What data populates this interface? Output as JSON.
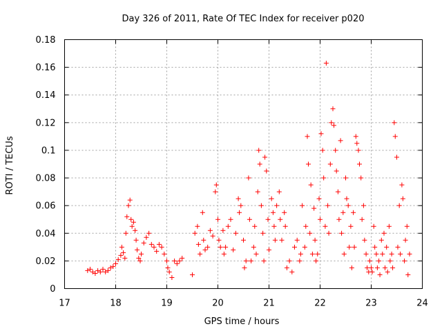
{
  "chart_data": {
    "type": "scatter",
    "title": "Day 326 of 2011, Rate Of TEC Index for receiver p020",
    "xlabel": "GPS time / hours",
    "ylabel": "ROTI / TECUs",
    "xlim": [
      17,
      24
    ],
    "ylim": [
      0,
      0.18
    ],
    "xticks": [
      17,
      18,
      19,
      20,
      21,
      22,
      23,
      24
    ],
    "yticks": [
      0,
      0.02,
      0.04,
      0.06,
      0.08,
      0.1,
      0.12,
      0.14,
      0.16,
      0.18
    ],
    "xtick_labels": [
      "17",
      "18",
      "19",
      "20",
      "21",
      "22",
      "23",
      "24"
    ],
    "ytick_labels": [
      "0",
      "0.02",
      "0.04",
      "0.06",
      "0.08",
      "0.1",
      "0.12",
      "0.14",
      "0.16",
      "0.18"
    ],
    "grid": true,
    "marker": "plus",
    "color": "#ff0000",
    "series": [
      {
        "name": "p020",
        "points": [
          [
            17.45,
            0.013
          ],
          [
            17.5,
            0.014
          ],
          [
            17.55,
            0.012
          ],
          [
            17.6,
            0.011
          ],
          [
            17.65,
            0.013
          ],
          [
            17.7,
            0.012
          ],
          [
            17.75,
            0.014
          ],
          [
            17.8,
            0.012
          ],
          [
            17.85,
            0.013
          ],
          [
            17.9,
            0.015
          ],
          [
            17.95,
            0.016
          ],
          [
            18.0,
            0.018
          ],
          [
            18.05,
            0.021
          ],
          [
            18.1,
            0.024
          ],
          [
            18.12,
            0.03
          ],
          [
            18.15,
            0.026
          ],
          [
            18.18,
            0.022
          ],
          [
            18.2,
            0.04
          ],
          [
            18.22,
            0.052
          ],
          [
            18.25,
            0.06
          ],
          [
            18.28,
            0.064
          ],
          [
            18.3,
            0.05
          ],
          [
            18.32,
            0.045
          ],
          [
            18.35,
            0.048
          ],
          [
            18.38,
            0.042
          ],
          [
            18.4,
            0.035
          ],
          [
            18.42,
            0.028
          ],
          [
            18.45,
            0.022
          ],
          [
            18.48,
            0.02
          ],
          [
            18.5,
            0.025
          ],
          [
            18.55,
            0.033
          ],
          [
            18.6,
            0.037
          ],
          [
            18.65,
            0.04
          ],
          [
            18.7,
            0.032
          ],
          [
            18.75,
            0.03
          ],
          [
            18.8,
            0.027
          ],
          [
            18.85,
            0.032
          ],
          [
            18.9,
            0.03
          ],
          [
            18.95,
            0.025
          ],
          [
            19.0,
            0.02
          ],
          [
            19.02,
            0.015
          ],
          [
            19.05,
            0.012
          ],
          [
            19.1,
            0.008
          ],
          [
            19.15,
            0.02
          ],
          [
            19.2,
            0.018
          ],
          [
            19.25,
            0.02
          ],
          [
            19.3,
            0.022
          ],
          [
            19.5,
            0.01
          ],
          [
            19.55,
            0.04
          ],
          [
            19.6,
            0.045
          ],
          [
            19.62,
            0.032
          ],
          [
            19.65,
            0.025
          ],
          [
            19.7,
            0.055
          ],
          [
            19.72,
            0.035
          ],
          [
            19.75,
            0.028
          ],
          [
            19.8,
            0.03
          ],
          [
            19.85,
            0.042
          ],
          [
            19.9,
            0.038
          ],
          [
            19.95,
            0.07
          ],
          [
            19.97,
            0.075
          ],
          [
            20.0,
            0.05
          ],
          [
            20.02,
            0.035
          ],
          [
            20.05,
            0.03
          ],
          [
            20.1,
            0.042
          ],
          [
            20.12,
            0.025
          ],
          [
            20.15,
            0.03
          ],
          [
            20.2,
            0.045
          ],
          [
            20.25,
            0.05
          ],
          [
            20.3,
            0.028
          ],
          [
            20.35,
            0.04
          ],
          [
            20.4,
            0.065
          ],
          [
            20.42,
            0.055
          ],
          [
            20.45,
            0.06
          ],
          [
            20.5,
            0.035
          ],
          [
            20.52,
            0.015
          ],
          [
            20.55,
            0.02
          ],
          [
            20.6,
            0.08
          ],
          [
            20.62,
            0.05
          ],
          [
            20.65,
            0.02
          ],
          [
            20.7,
            0.03
          ],
          [
            20.72,
            0.045
          ],
          [
            20.75,
            0.025
          ],
          [
            20.78,
            0.07
          ],
          [
            20.8,
            0.1
          ],
          [
            20.82,
            0.09
          ],
          [
            20.85,
            0.06
          ],
          [
            20.88,
            0.04
          ],
          [
            20.9,
            0.02
          ],
          [
            20.92,
            0.095
          ],
          [
            20.95,
            0.085
          ],
          [
            20.98,
            0.05
          ],
          [
            21.0,
            0.028
          ],
          [
            21.05,
            0.065
          ],
          [
            21.08,
            0.055
          ],
          [
            21.1,
            0.045
          ],
          [
            21.12,
            0.035
          ],
          [
            21.15,
            0.06
          ],
          [
            21.2,
            0.07
          ],
          [
            21.22,
            0.05
          ],
          [
            21.25,
            0.035
          ],
          [
            21.3,
            0.055
          ],
          [
            21.32,
            0.045
          ],
          [
            21.35,
            0.015
          ],
          [
            21.4,
            0.02
          ],
          [
            21.45,
            0.012
          ],
          [
            21.5,
            0.03
          ],
          [
            21.55,
            0.035
          ],
          [
            21.6,
            0.02
          ],
          [
            21.62,
            0.025
          ],
          [
            21.65,
            0.06
          ],
          [
            21.7,
            0.03
          ],
          [
            21.72,
            0.045
          ],
          [
            21.75,
            0.11
          ],
          [
            21.77,
            0.09
          ],
          [
            21.8,
            0.04
          ],
          [
            21.82,
            0.075
          ],
          [
            21.85,
            0.025
          ],
          [
            21.88,
            0.058
          ],
          [
            21.9,
            0.035
          ],
          [
            21.92,
            0.02
          ],
          [
            21.95,
            0.025
          ],
          [
            21.98,
            0.065
          ],
          [
            22.0,
            0.05
          ],
          [
            22.02,
            0.112
          ],
          [
            22.05,
            0.1
          ],
          [
            22.07,
            0.08
          ],
          [
            22.1,
            0.045
          ],
          [
            22.12,
            0.163
          ],
          [
            22.15,
            0.06
          ],
          [
            22.17,
            0.04
          ],
          [
            22.2,
            0.09
          ],
          [
            22.22,
            0.12
          ],
          [
            22.25,
            0.13
          ],
          [
            22.27,
            0.118
          ],
          [
            22.3,
            0.1
          ],
          [
            22.32,
            0.085
          ],
          [
            22.35,
            0.07
          ],
          [
            22.37,
            0.05
          ],
          [
            22.4,
            0.107
          ],
          [
            22.42,
            0.04
          ],
          [
            22.45,
            0.055
          ],
          [
            22.47,
            0.025
          ],
          [
            22.5,
            0.08
          ],
          [
            22.52,
            0.065
          ],
          [
            22.55,
            0.06
          ],
          [
            22.57,
            0.03
          ],
          [
            22.6,
            0.045
          ],
          [
            22.62,
            0.015
          ],
          [
            22.65,
            0.055
          ],
          [
            22.67,
            0.03
          ],
          [
            22.7,
            0.11
          ],
          [
            22.72,
            0.105
          ],
          [
            22.75,
            0.1
          ],
          [
            22.77,
            0.09
          ],
          [
            22.8,
            0.08
          ],
          [
            22.82,
            0.05
          ],
          [
            22.85,
            0.06
          ],
          [
            22.87,
            0.035
          ],
          [
            22.9,
            0.025
          ],
          [
            22.92,
            0.015
          ],
          [
            22.95,
            0.012
          ],
          [
            22.97,
            0.02
          ],
          [
            23.0,
            0.015
          ],
          [
            23.02,
            0.012
          ],
          [
            23.05,
            0.045
          ],
          [
            23.07,
            0.03
          ],
          [
            23.1,
            0.025
          ],
          [
            23.12,
            0.015
          ],
          [
            23.15,
            0.02
          ],
          [
            23.17,
            0.01
          ],
          [
            23.2,
            0.035
          ],
          [
            23.22,
            0.025
          ],
          [
            23.25,
            0.04
          ],
          [
            23.27,
            0.015
          ],
          [
            23.3,
            0.03
          ],
          [
            23.32,
            0.012
          ],
          [
            23.35,
            0.045
          ],
          [
            23.37,
            0.02
          ],
          [
            23.4,
            0.025
          ],
          [
            23.42,
            0.015
          ],
          [
            23.45,
            0.12
          ],
          [
            23.47,
            0.11
          ],
          [
            23.5,
            0.095
          ],
          [
            23.52,
            0.03
          ],
          [
            23.55,
            0.06
          ],
          [
            23.57,
            0.025
          ],
          [
            23.6,
            0.075
          ],
          [
            23.62,
            0.065
          ],
          [
            23.65,
            0.02
          ],
          [
            23.67,
            0.035
          ],
          [
            23.7,
            0.045
          ],
          [
            23.72,
            0.01
          ],
          [
            23.75,
            0.025
          ]
        ]
      }
    ]
  }
}
